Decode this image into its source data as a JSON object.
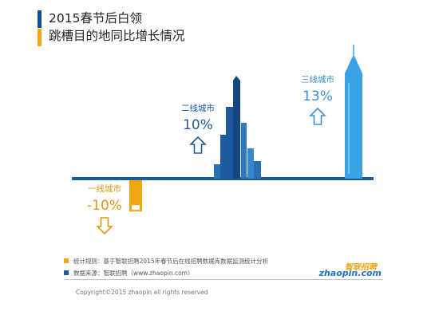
{
  "title": {
    "line1": "2015春节后白领",
    "line2": "跳槽目的地同比增长情况",
    "bar_colors": [
      "#0c4f9c",
      "#f2a614"
    ]
  },
  "chart_data": {
    "type": "bar",
    "title": "2015春节后白领跳槽目的地同比增长情况",
    "categories": [
      "一线城市",
      "二线城市",
      "三线城市"
    ],
    "values": [
      -10,
      10,
      13
    ],
    "value_labels": [
      "-10%",
      "10%",
      "13%"
    ],
    "unit": "%",
    "bar_colors": [
      "#f2a614",
      "#1d5a9e",
      "#3aa3e8"
    ],
    "label_colors": [
      "#e2941b",
      "#1d5a9e",
      "#3b93d6"
    ],
    "axis_color": "#1d5a9e",
    "arrows": [
      "down",
      "up",
      "up"
    ]
  },
  "footer": {
    "note1": "统计规则：基于智联招聘2015年春节后在线招聘数据库数据监测统计分析",
    "note1_color": "#f2a614",
    "note2": "数据来源：智联招聘（www.zhaopin.com）",
    "note2_color": "#1d5a9e",
    "copyright": "Copyright©2015 zhaopin all rights reserved",
    "logo_cn": "智联招聘",
    "logo_en": "zhaopin.com"
  }
}
